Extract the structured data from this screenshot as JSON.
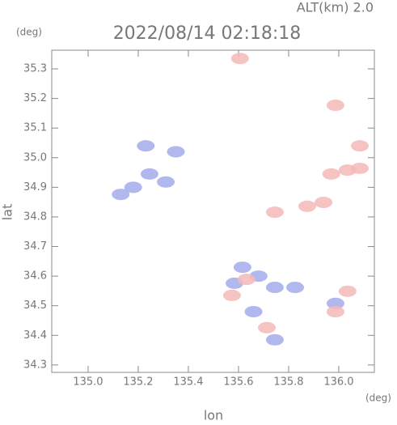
{
  "chart_data": {
    "type": "scatter",
    "title": "2022/08/14 02:18:18",
    "subtitle": "ALT(km) 2.0",
    "y_unit": "(deg)",
    "x_unit": "(deg)",
    "x_label": "lon",
    "y_label": "lat",
    "xlim": [
      134.855,
      136.142
    ],
    "ylim": [
      34.275,
      35.363
    ],
    "xticks": [
      {
        "value": 135.0,
        "label": "135.0"
      },
      135.2,
      135.4,
      135.6,
      135.8,
      {
        "value": 136.0,
        "label": "136.0"
      }
    ],
    "yticks": [
      34.3,
      34.4,
      34.5,
      34.6,
      34.7,
      34.8,
      34.9,
      {
        "value": 35.0,
        "label": "35.0"
      },
      35.1,
      35.2,
      35.3
    ],
    "series": [
      {
        "color": "#a3abea",
        "x": [
          135.245,
          135.31,
          135.13,
          135.18,
          135.35,
          135.23,
          135.616,
          135.68,
          135.584,
          135.745,
          135.826,
          135.987,
          135.745,
          135.66
        ],
        "y": [
          34.945,
          34.918,
          34.876,
          34.9,
          35.02,
          35.04,
          34.63,
          34.6,
          34.576,
          34.562,
          34.562,
          34.508,
          34.385,
          34.48
        ]
      },
      {
        "color": "#f5b8b8",
        "x": [
          135.606,
          136.035,
          135.97,
          136.084,
          135.939,
          135.874,
          135.745,
          136.035,
          135.987,
          135.713,
          135.632,
          135.574,
          136.084,
          135.987
        ],
        "y": [
          35.335,
          34.958,
          34.945,
          34.964,
          34.849,
          34.836,
          34.816,
          34.549,
          34.48,
          34.426,
          34.589,
          34.535,
          35.04,
          35.177
        ]
      }
    ]
  }
}
